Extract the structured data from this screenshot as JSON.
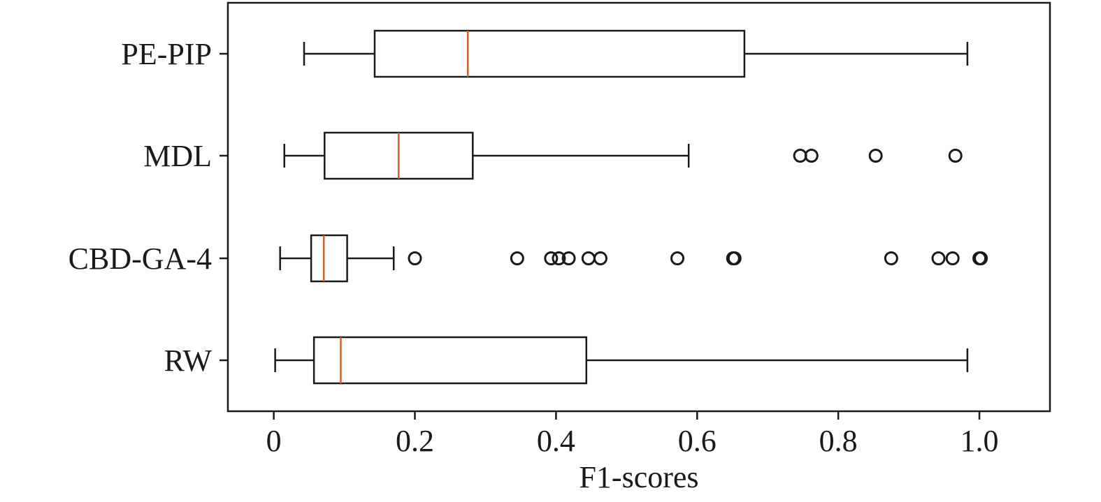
{
  "chart_data": {
    "type": "box",
    "orientation": "horizontal",
    "xlabel": "F1-scores",
    "xlim": [
      -0.065,
      1.1
    ],
    "xticks": [
      0,
      0.2,
      0.4,
      0.6,
      0.8,
      1.0
    ],
    "xtick_labels": [
      "0",
      "0.2",
      "0.4",
      "0.6",
      "0.8",
      "1.0"
    ],
    "grid": false,
    "categories": [
      "PE-PIP",
      "MDL",
      "CBD-GA-4",
      "RW"
    ],
    "boxes": [
      {
        "label": "PE-PIP",
        "whisker_low": 0.043,
        "q1": 0.143,
        "median": 0.275,
        "q3": 0.667,
        "whisker_high": 0.983,
        "outliers": []
      },
      {
        "label": "MDL",
        "whisker_low": 0.015,
        "q1": 0.072,
        "median": 0.177,
        "q3": 0.282,
        "whisker_high": 0.588,
        "outliers": [
          0.746,
          0.762,
          0.853,
          0.966
        ]
      },
      {
        "label": "CBD-GA-4",
        "whisker_low": 0.009,
        "q1": 0.053,
        "median": 0.071,
        "q3": 0.104,
        "whisker_high": 0.17,
        "outliers": [
          0.2,
          0.345,
          0.393,
          0.404,
          0.418,
          0.446,
          0.463,
          0.572,
          0.651,
          0.653,
          0.875,
          0.942,
          0.962,
          1.0,
          1.002
        ]
      },
      {
        "label": "RW",
        "whisker_low": 0.002,
        "q1": 0.057,
        "median": 0.095,
        "q3": 0.443,
        "whisker_high": 0.983,
        "outliers": []
      }
    ],
    "colors": {
      "box": "#1a1a1a",
      "median": "#d2622a",
      "outlier": "#1a1a1a"
    }
  }
}
